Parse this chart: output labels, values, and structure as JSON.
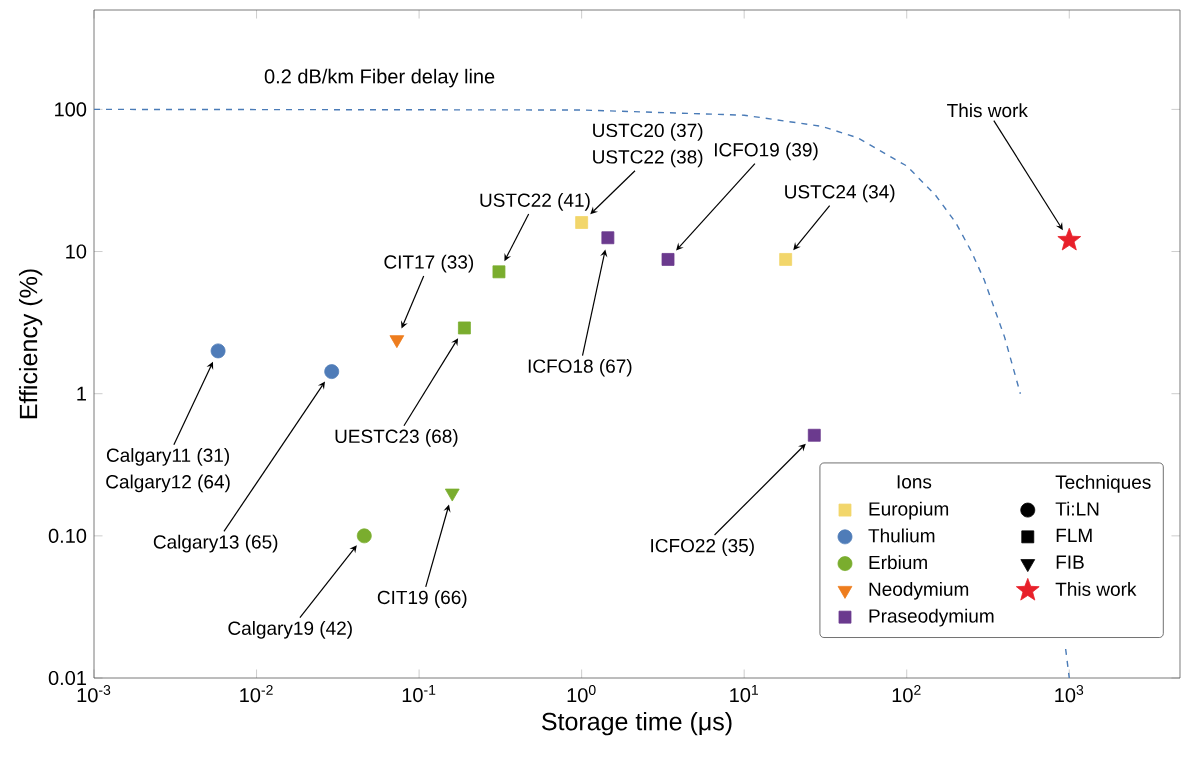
{
  "chart_data": {
    "type": "scatter",
    "xlabel": "Storage time (μs)",
    "ylabel": "Efficiency (%)",
    "log": "xy",
    "xlim": [
      0.001,
      4800
    ],
    "ylim": [
      0.01,
      500
    ],
    "xticks": [
      {
        "value": 0.001,
        "label": "10$^{-3}$"
      },
      {
        "value": 0.01,
        "label": "10$^{-2}$"
      },
      {
        "value": 0.1,
        "label": "10$^{-1}$"
      },
      {
        "value": 1,
        "label": "10$^{0}$"
      },
      {
        "value": 10,
        "label": "10$^{1}$"
      },
      {
        "value": 100,
        "label": "10$^{2}$"
      },
      {
        "value": 1000,
        "label": "10$^{3}$"
      }
    ],
    "yticks": [
      0.01,
      {
        "value": 0.1,
        "label": "0.10"
      },
      1,
      10,
      100
    ],
    "legend": "bottom right",
    "legend_title": "Ions",
    "series": [
      {
        "name": "Europium",
        "color": "#f2d66b",
        "marker": "square",
        "x": [
          1.0,
          18
        ],
        "values": [
          16,
          8.8
        ]
      },
      {
        "name": "Thulium",
        "color": "#4f7cb8",
        "marker": "circle",
        "x": [
          0.0058,
          0.029
        ],
        "values": [
          2.0,
          1.43
        ]
      },
      {
        "name": "Erbium",
        "color": "#7aad2e",
        "marker": "circle",
        "x": [
          0.046
        ],
        "values": [
          0.1
        ]
      },
      {
        "name": "Neodymium",
        "color": "#ee7d1e",
        "marker": "triangle",
        "x": [
          0.073
        ],
        "values": [
          2.4
        ]
      },
      {
        "name": "Praseodymium",
        "color": "#6b3a8e",
        "marker": "square",
        "x": [
          1.45,
          3.4,
          27
        ],
        "values": [
          12.5,
          8.8,
          0.51
        ]
      },
      {
        "name": "Ti:LN",
        "color": "#000000",
        "marker": "circle"
      },
      {
        "name": "FLM",
        "color": "#000000",
        "marker": "square"
      },
      {
        "name": "FIB",
        "color": "#000000",
        "marker": "triangle"
      },
      {
        "name": "This work",
        "color": "#e8202a",
        "marker": "star",
        "x": [
          1000
        ],
        "values": [
          12
        ]
      },
      {
        "color": "#7aad2e",
        "marker": "square",
        "x": [
          0.19,
          0.31
        ],
        "values": [
          2.9,
          7.2
        ]
      },
      {
        "color": "#7aad2e",
        "marker": "triangle",
        "x": [
          0.16
        ],
        "values": [
          0.2
        ]
      },
      {
        "name": "0.2 dB/km Fiber delay line",
        "type": "line",
        "color": "#4a7bb7",
        "line_style": "dashed",
        "marker": "none",
        "x": [
          0.001,
          1,
          10,
          30,
          50,
          100,
          150,
          200,
          250,
          300,
          400,
          500,
          600,
          700,
          800,
          900,
          950,
          1000
        ],
        "values": [
          100,
          99,
          91,
          76,
          63,
          40,
          25,
          16,
          10,
          6.3,
          2.5,
          1,
          null,
          null,
          null,
          null,
          0.016,
          0.01
        ]
      }
    ],
    "annotations": [
      "Techniques",
      {
        "text": "This work",
        "x": 1000,
        "y": 12
      },
      {
        "text": "USTC24 (34)",
        "x": 18,
        "y": 8.8
      },
      {
        "text": "ICFO19 (39)",
        "x": 3.4,
        "y": 8.8
      },
      "USTC20 (37)",
      {
        "text": "USTC22 (38)",
        "x": 1.0,
        "y": 16
      },
      {
        "text": "USTC22 (41)",
        "x": 0.31,
        "y": 7.2
      },
      {
        "text": "CIT17 (33)",
        "x": 0.073,
        "y": 2.4
      },
      {
        "text": "ICFO18 (67)",
        "x": 1.45,
        "y": 12.5
      },
      {
        "text": "UESTC23 (68)",
        "x": 0.19,
        "y": 2.9
      },
      {
        "text": "Calgary11 (31)",
        "x": 0.0058,
        "y": 2.0
      },
      "Calgary12 (64)",
      {
        "text": "Calgary13 (65)",
        "x": 0.029,
        "y": 1.43
      },
      {
        "text": "Calgary19 (42)",
        "x": 0.046,
        "y": 0.1
      },
      {
        "text": "CIT19 (66)",
        "x": 0.16,
        "y": 0.2
      },
      {
        "text": "ICFO22 (35)",
        "x": 27,
        "y": 0.51
      }
    ]
  }
}
